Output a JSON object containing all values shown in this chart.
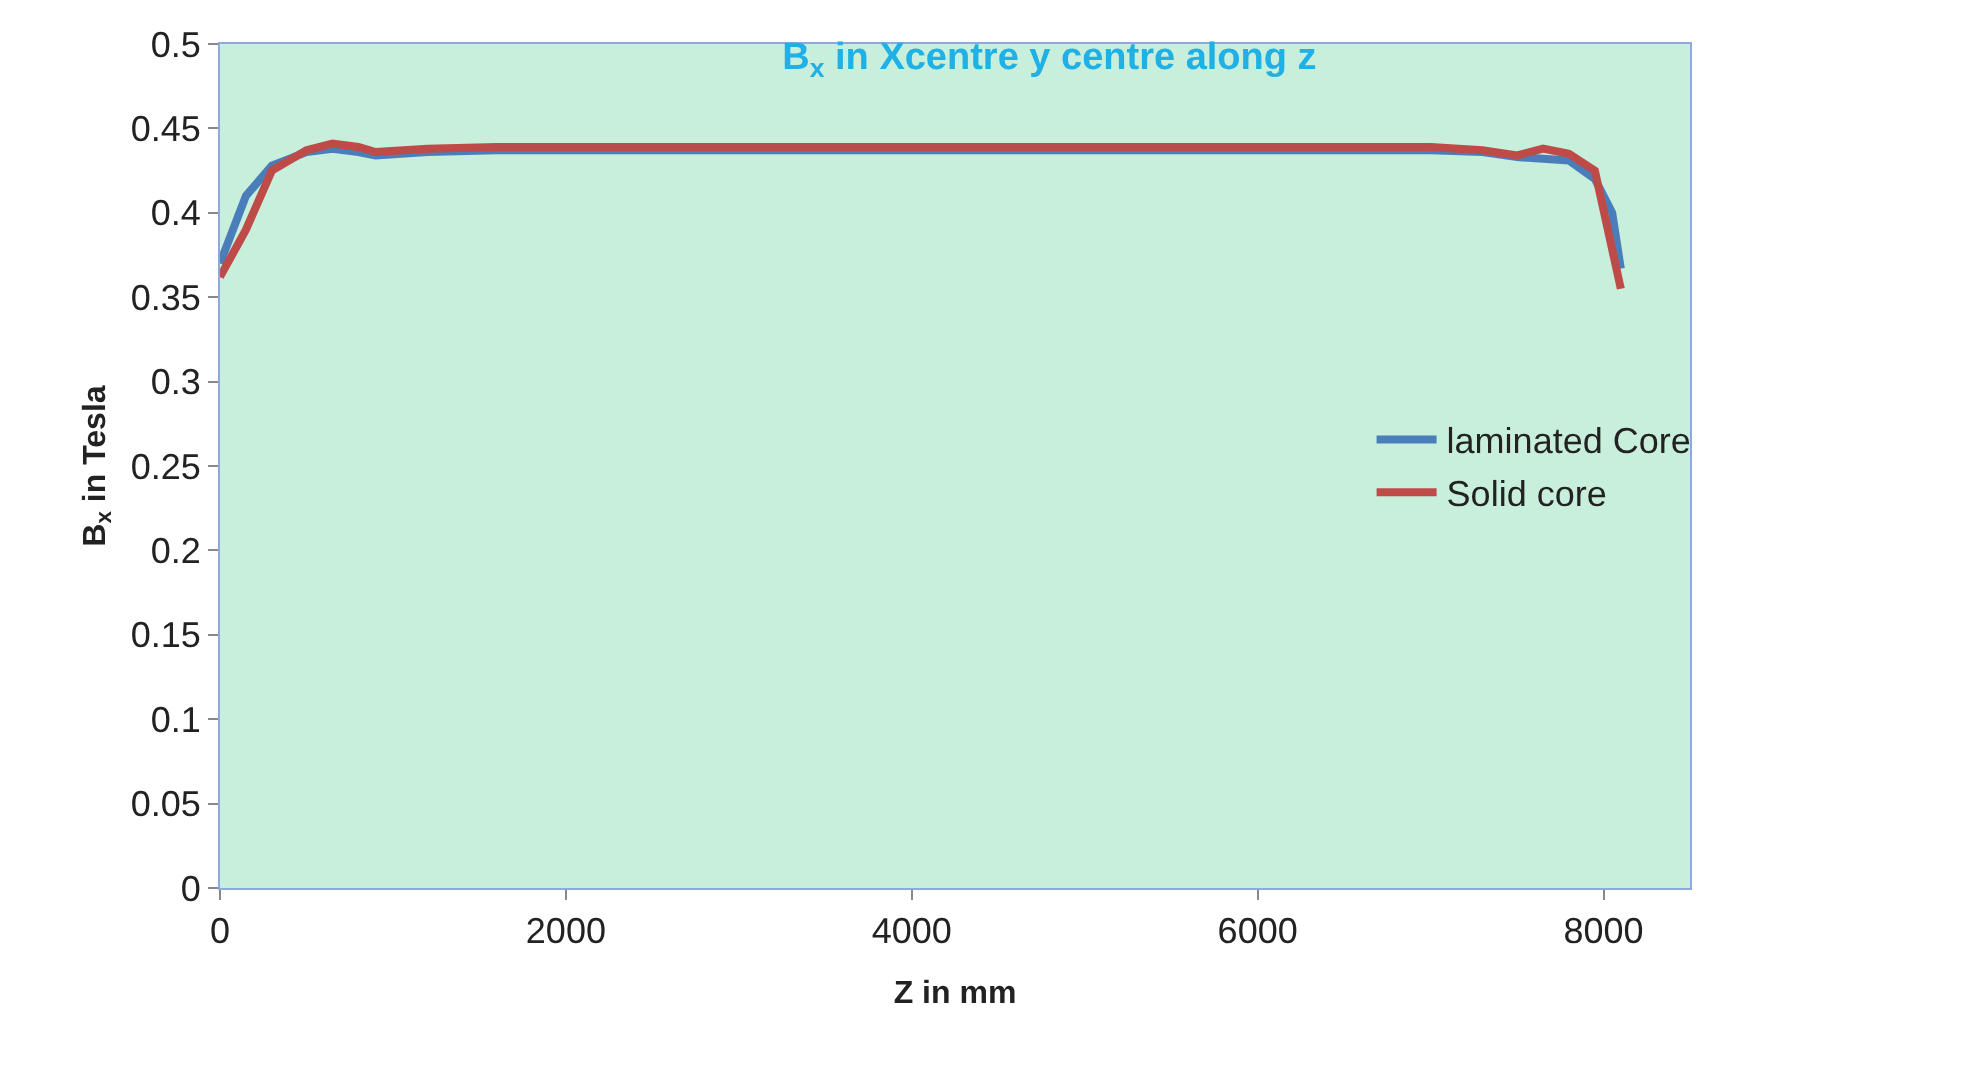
{
  "chart_data": {
    "type": "line",
    "title": "B$_{x}$ in Xcentre y centre along z",
    "xlabel": "Z in mm",
    "ylabel": "B$_{x}$ in Tesla",
    "xlim": [
      0,
      8500
    ],
    "xticks": [
      0,
      2000,
      4000,
      6000,
      8000
    ],
    "ylim": [
      0,
      0.5
    ],
    "yticks": [
      0,
      0.05,
      0.1,
      0.15,
      0.2,
      0.25,
      0.3,
      0.35,
      0.4,
      0.45,
      0.5
    ],
    "grid": false,
    "legend": "right",
    "marker": "none",
    "line_style": "solid",
    "series": [
      {
        "name": "laminated Core",
        "color": "#4a7ebb",
        "x": [
          0,
          150,
          300,
          500,
          650,
          800,
          900,
          1200,
          1600,
          3000,
          5000,
          7000,
          7300,
          7500,
          7650,
          7800,
          7950,
          8050,
          8100
        ],
        "values": [
          0.37,
          0.41,
          0.428,
          0.436,
          0.438,
          0.436,
          0.434,
          0.436,
          0.437,
          0.437,
          0.437,
          0.437,
          0.436,
          0.433,
          0.432,
          0.431,
          0.42,
          0.4,
          0.367
        ]
      },
      {
        "name": "Solid core",
        "color": "#be4b48",
        "x": [
          0,
          150,
          300,
          500,
          650,
          800,
          900,
          1200,
          1600,
          3000,
          5000,
          7000,
          7300,
          7500,
          7650,
          7800,
          7950,
          8100
        ],
        "values": [
          0.362,
          0.39,
          0.425,
          0.437,
          0.441,
          0.439,
          0.436,
          0.438,
          0.439,
          0.439,
          0.439,
          0.439,
          0.437,
          0.434,
          0.438,
          0.435,
          0.425,
          0.355
        ]
      }
    ]
  }
}
